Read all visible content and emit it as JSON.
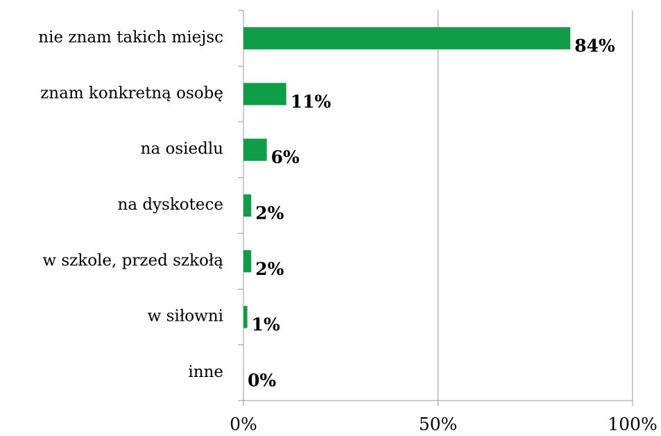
{
  "chart_data": {
    "type": "hbar",
    "categories": [
      "nie znam takich miejsc",
      "znam konkretną osobę",
      "na osiedlu",
      "na dyskotece",
      "w szkole, przed szkołą",
      "w siłowni",
      "inne"
    ],
    "values": [
      84,
      11,
      6,
      2,
      2,
      1,
      0
    ],
    "value_labels": [
      "84%",
      "11%",
      "6%",
      "2%",
      "2%",
      "1%",
      "0%"
    ],
    "color": "#0f9d48",
    "xlim": [
      0,
      100
    ],
    "xticks": [
      {
        "value": 0,
        "label": "0%"
      },
      {
        "value": 50,
        "label": "50%"
      },
      {
        "value": 100,
        "label": "100%"
      }
    ],
    "grid": true
  }
}
